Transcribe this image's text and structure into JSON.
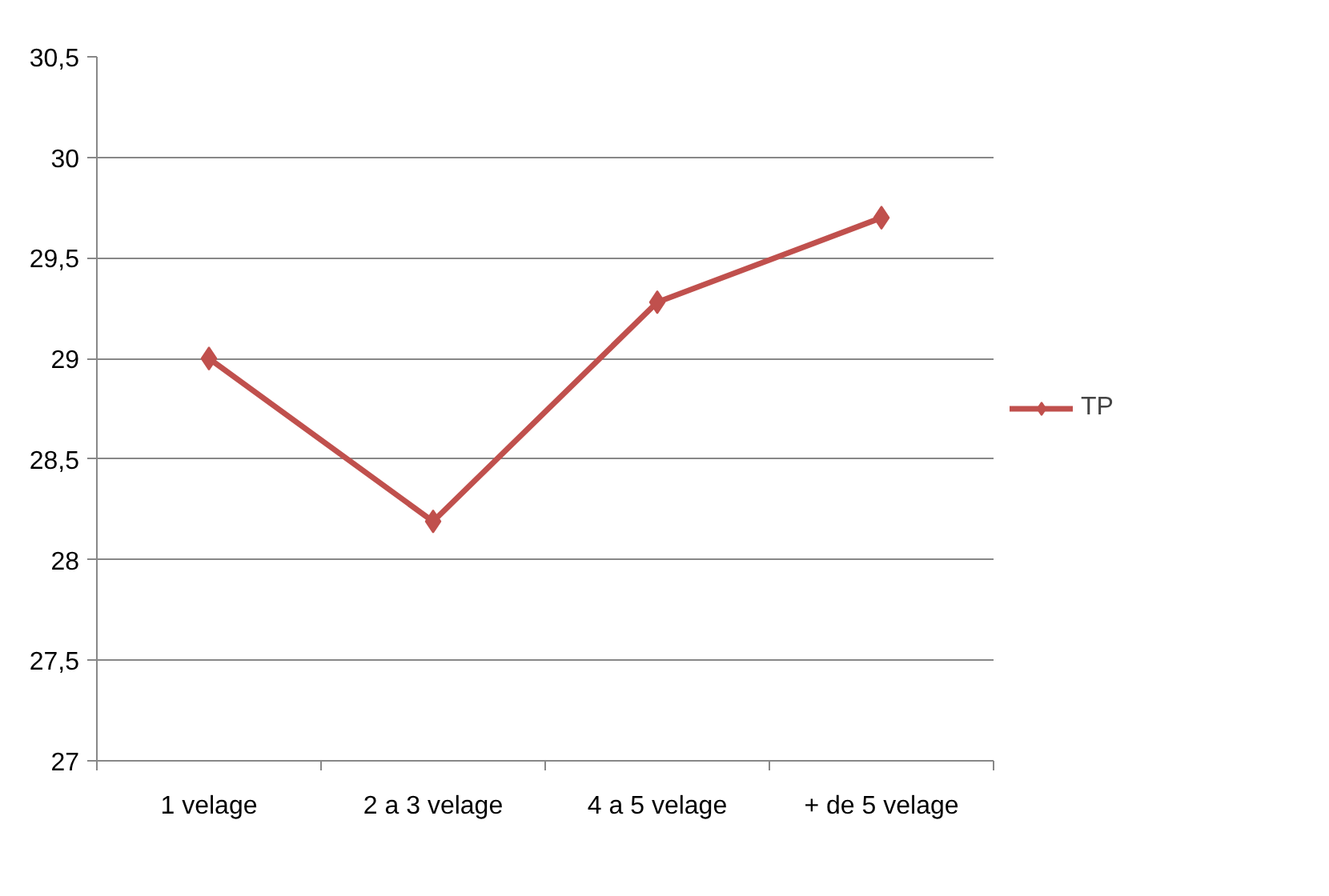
{
  "chart_data": {
    "type": "line",
    "categories": [
      "1 velage",
      "2 a 3 velage",
      "4 a 5 velage",
      "+ de 5 velage"
    ],
    "series": [
      {
        "name": "TP",
        "color": "#c0504d",
        "values": [
          29.0,
          28.19,
          29.28,
          29.7
        ]
      }
    ],
    "ylim": [
      27,
      30.5
    ],
    "yticks": [
      {
        "value": 27,
        "label": "27"
      },
      {
        "value": 27.5,
        "label": "27,5"
      },
      {
        "value": 28,
        "label": "28"
      },
      {
        "value": 28.5,
        "label": "28,5"
      },
      {
        "value": 29,
        "label": "29"
      },
      {
        "value": 29.5,
        "label": "29,5"
      },
      {
        "value": 30,
        "label": "30"
      },
      {
        "value": 30.5,
        "label": "30,5"
      }
    ],
    "grid": "y",
    "legend": "right",
    "marker": "diamond",
    "line_style": "solid"
  }
}
